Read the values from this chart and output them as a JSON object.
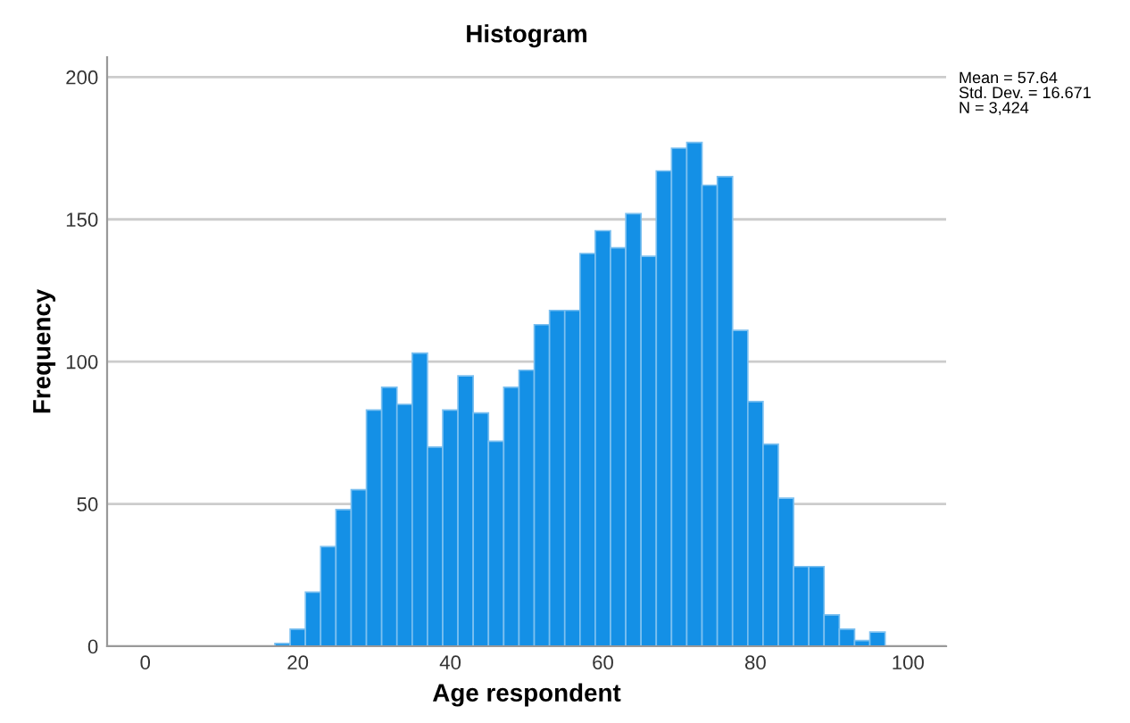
{
  "chart_data": {
    "type": "histogram",
    "title": "Histogram",
    "xlabel": "Age respondent",
    "ylabel": "Frequency",
    "bins": [
      17,
      19,
      21,
      23,
      25,
      27,
      29,
      31,
      33,
      35,
      37,
      39,
      41,
      43,
      45,
      47,
      49,
      51,
      53,
      55,
      57,
      59,
      61,
      63,
      65,
      67,
      69,
      71,
      73,
      75,
      77,
      79,
      81,
      83,
      85,
      87,
      89,
      91,
      93,
      95,
      97
    ],
    "values": [
      1,
      6,
      19,
      35,
      48,
      55,
      83,
      91,
      85,
      103,
      70,
      83,
      95,
      82,
      72,
      91,
      97,
      113,
      118,
      118,
      138,
      146,
      140,
      152,
      137,
      167,
      175,
      177,
      162,
      165,
      111,
      86,
      71,
      52,
      28,
      28,
      11,
      6,
      2,
      5
    ],
    "color": "#1490e6",
    "xlim": [
      -5,
      105
    ],
    "ylim": [
      0,
      207
    ],
    "xticks": [
      0,
      20,
      40,
      60,
      80,
      100
    ],
    "yticks": [
      0,
      50,
      100,
      150,
      200
    ],
    "grid": "y",
    "annotations": [
      "Mean = 57.64\nStd. Dev. = 16.671\nN = 3,424"
    ]
  }
}
